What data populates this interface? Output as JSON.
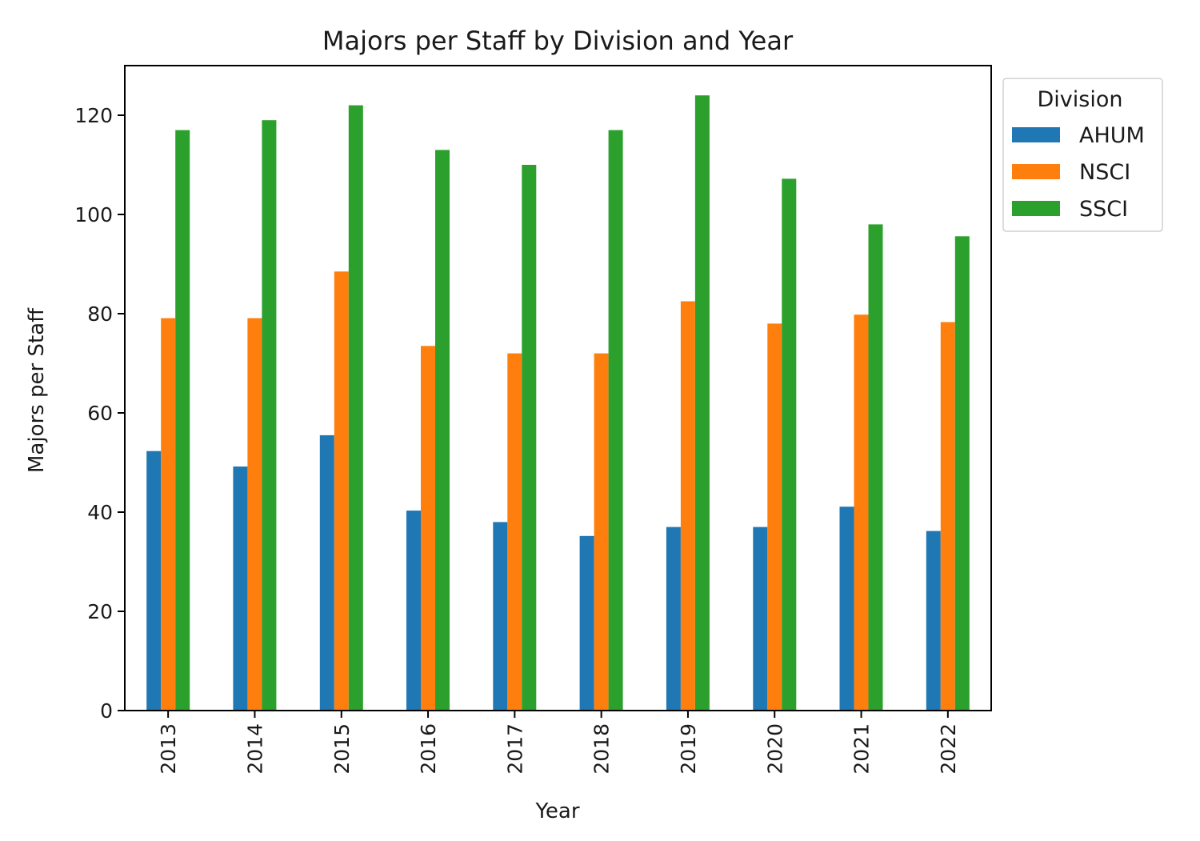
{
  "chart_data": {
    "type": "bar",
    "title": "Majors per Staff by Division and Year",
    "xlabel": "Year",
    "ylabel": "Majors per Staff",
    "categories": [
      "2013",
      "2014",
      "2015",
      "2016",
      "2017",
      "2018",
      "2019",
      "2020",
      "2021",
      "2022"
    ],
    "series": [
      {
        "name": "AHUM",
        "color": "#1f77b4",
        "values": [
          52.3,
          49.2,
          55.5,
          40.3,
          38.0,
          35.2,
          37.0,
          37.0,
          41.1,
          36.2
        ]
      },
      {
        "name": "NSCI",
        "color": "#ff7f0e",
        "values": [
          79.1,
          79.1,
          88.5,
          73.5,
          72.0,
          72.0,
          82.5,
          78.0,
          79.8,
          78.3
        ]
      },
      {
        "name": "SSCI",
        "color": "#2ca02c",
        "values": [
          117.0,
          119.0,
          122.0,
          113.0,
          110.0,
          117.0,
          124.0,
          107.2,
          98.0,
          95.6
        ]
      }
    ],
    "ylim": [
      0,
      130
    ],
    "yticks": [
      0,
      20,
      40,
      60,
      80,
      100,
      120
    ],
    "grid": false,
    "legend": {
      "title": "Division",
      "placement": "outside top-right"
    }
  }
}
